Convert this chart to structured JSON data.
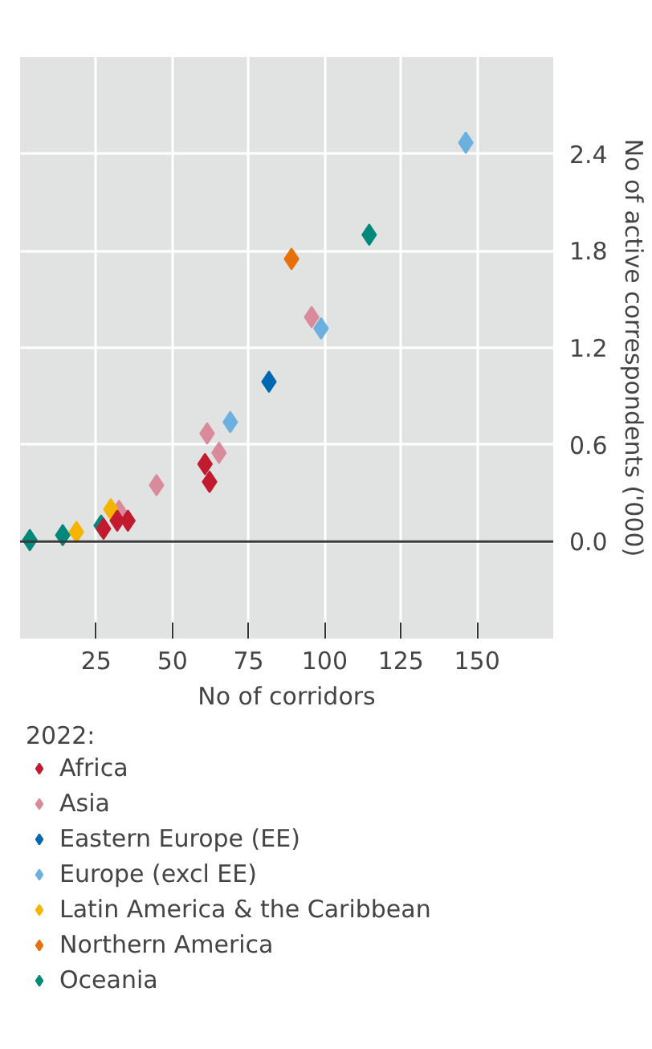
{
  "chart_data": {
    "type": "scatter",
    "xlabel": "No of corridors",
    "ylabel": "No of active correspondents ('000)",
    "legend_title": "2022:",
    "marker": "diamond",
    "grid": true,
    "legend": "bottom",
    "xlim": [
      0,
      175
    ],
    "xticks": [
      25,
      50,
      75,
      100,
      125,
      150
    ],
    "ylim": [
      -0.6,
      3.0
    ],
    "yticks": [
      {
        "value": 0,
        "label": "0.0"
      },
      0.6,
      1.2,
      1.8,
      2.4
    ],
    "ref_lines": [
      {
        "axis": "y",
        "value": 0,
        "color": "#3a3a3a"
      }
    ],
    "series": [
      {
        "name": "Africa",
        "color": "#c21b2f",
        "x": [
          60.7,
          62.2,
          27.4,
          31.9,
          35.4
        ],
        "values": [
          0.48,
          0.37,
          0.08,
          0.13,
          0.13
        ]
      },
      {
        "name": "Asia",
        "color": "#d98a9b",
        "x": [
          95.7,
          61.4,
          65.3,
          44.8,
          32.5
        ],
        "values": [
          1.39,
          0.67,
          0.55,
          0.35,
          0.19
        ]
      },
      {
        "name": "Eastern Europe (EE)",
        "color": "#0067b1",
        "x": [
          81.7
        ],
        "values": [
          0.99
        ]
      },
      {
        "name": "Europe (excl EE)",
        "color": "#6cb0e0",
        "x": [
          146.3,
          98.8,
          69.0
        ],
        "values": [
          2.47,
          1.32,
          0.74
        ]
      },
      {
        "name": "Latin America & the Caribbean",
        "color": "#f5b400",
        "x": [
          29.8,
          18.5
        ],
        "values": [
          0.2,
          0.06
        ]
      },
      {
        "name": "Northern America",
        "color": "#e8700a",
        "x": [
          89.1
        ],
        "values": [
          1.75
        ]
      },
      {
        "name": "Oceania",
        "color": "#00897b",
        "x": [
          114.6,
          26.6,
          3.2,
          14.0
        ],
        "values": [
          1.9,
          0.1,
          0.01,
          0.04
        ]
      }
    ]
  }
}
